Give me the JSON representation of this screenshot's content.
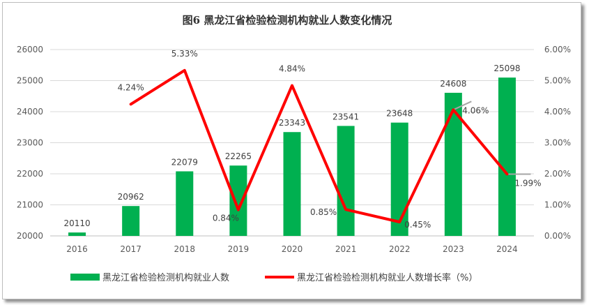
{
  "chart_data": {
    "type": "bar+line",
    "title": "图6  黑龙江省检验检测机构就业人数变化情况",
    "categories": [
      "2016",
      "2017",
      "2018",
      "2019",
      "2020",
      "2021",
      "2022",
      "2023",
      "2024"
    ],
    "series": [
      {
        "name": "黑龙江省检验检测机构就业人数",
        "type": "bar",
        "axis": "left",
        "color": "#00b050",
        "values": [
          20110,
          20962,
          22079,
          22265,
          23343,
          23541,
          23648,
          24608,
          25098
        ],
        "labels": [
          "20110",
          "20962",
          "22079",
          "22265",
          "23343",
          "23541",
          "23648",
          "24608",
          "25098"
        ]
      },
      {
        "name": "黑龙江省检验检测机构就业人数增长率（%）",
        "type": "line",
        "axis": "right",
        "color": "#ff0000",
        "values": [
          null,
          4.24,
          5.33,
          0.84,
          4.84,
          0.85,
          0.45,
          4.06,
          1.99
        ],
        "labels": [
          "",
          "4.24%",
          "5.33%",
          "0.84%",
          "4.84%",
          "0.85%",
          "0.45%",
          "4.06%",
          "1.99%"
        ]
      }
    ],
    "y_left": {
      "ylim": [
        20000,
        26000
      ],
      "ticks": [
        20000,
        21000,
        22000,
        23000,
        24000,
        25000,
        26000
      ],
      "tick_labels": [
        "20000",
        "21000",
        "22000",
        "23000",
        "24000",
        "25000",
        "26000"
      ]
    },
    "y_right": {
      "ylim": [
        0,
        6
      ],
      "ticks": [
        0,
        1,
        2,
        3,
        4,
        5,
        6
      ],
      "tick_labels": [
        "0.00%",
        "1.00%",
        "2.00%",
        "3.00%",
        "4.00%",
        "5.00%",
        "6.00%"
      ]
    },
    "grid": true,
    "legend_position": "bottom"
  }
}
